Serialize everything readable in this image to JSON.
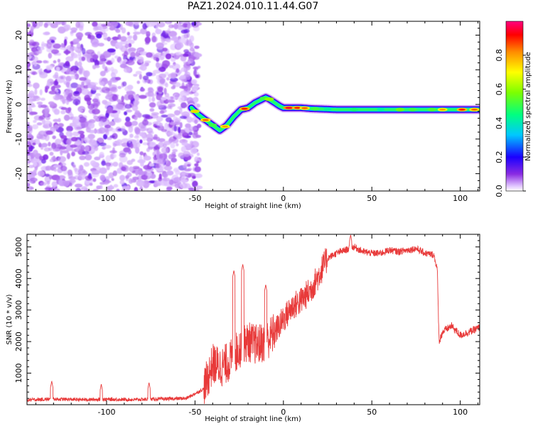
{
  "title": "PAZ1.2024.010.11.44.G07",
  "chart_data": [
    {
      "type": "heatmap",
      "title": "PAZ1.2024.010.11.44.G07",
      "xlabel": "Height of straight line (km)",
      "ylabel": "Frequency (Hz)",
      "xlim": [
        -145,
        111
      ],
      "ylim": [
        -25,
        24
      ],
      "xticks": [
        -100,
        -50,
        0,
        50,
        100
      ],
      "yticks": [
        -20,
        -10,
        0,
        10,
        20
      ],
      "noise_region": [
        -145,
        -50
      ],
      "ridge": {
        "x": [
          -52,
          -48,
          -44,
          -40,
          -36,
          -32,
          -28,
          -24,
          -20,
          -16,
          -12,
          -10,
          -8,
          -5,
          -2,
          0,
          5,
          10,
          15,
          20,
          25,
          30,
          35,
          40,
          50,
          60,
          70,
          80,
          90,
          100,
          111
        ],
        "frequency": [
          -1,
          -3,
          -4.5,
          -6,
          -7.5,
          -6,
          -3.5,
          -1.5,
          -1,
          0.5,
          1.5,
          2,
          1.5,
          0.5,
          -0.5,
          -1,
          -1,
          -1,
          -1.2,
          -1.3,
          -1.4,
          -1.5,
          -1.5,
          -1.5,
          -1.5,
          -1.5,
          -1.5,
          -1.5,
          -1.5,
          -1.5,
          -1.5
        ]
      },
      "colorbar": {
        "label": "Normalized spectral amplitude",
        "range": [
          0,
          1
        ],
        "ticks": [
          "0.0",
          "0.2",
          "0.4",
          "0.6",
          "0.8"
        ]
      }
    },
    {
      "type": "line",
      "xlabel": "Height of straight line (km)",
      "ylabel": "SNR (10 * v/v)",
      "xlim": [
        -145,
        111
      ],
      "ylim": [
        0,
        5400
      ],
      "xticks": [
        -100,
        -50,
        0,
        50,
        100
      ],
      "yticks": [
        1000,
        2000,
        3000,
        4000,
        5000
      ],
      "color": "#e83a3a",
      "series": [
        {
          "x": [
            -145,
            -130,
            -115,
            -100,
            -85,
            -70,
            -55,
            -45,
            -40,
            -35,
            -30,
            -25,
            -20,
            -15,
            -10,
            -5,
            0,
            5,
            10,
            15,
            20,
            25,
            30,
            35,
            40,
            45,
            50,
            55,
            60,
            65,
            70,
            75,
            80,
            85,
            87,
            88,
            90,
            95,
            100,
            105,
            111
          ],
          "y": [
            150,
            180,
            160,
            170,
            160,
            180,
            200,
            500,
            1300,
            1200,
            1400,
            1800,
            2000,
            1900,
            2000,
            2300,
            2700,
            3100,
            3300,
            3600,
            4100,
            4650,
            4800,
            4900,
            5000,
            4850,
            4800,
            4800,
            4900,
            4850,
            4900,
            4950,
            4800,
            4750,
            4300,
            2000,
            2300,
            2500,
            2200,
            2300,
            2450
          ]
        }
      ],
      "spikes": [
        {
          "x": -131,
          "y": 750
        },
        {
          "x": -103,
          "y": 650
        },
        {
          "x": -76,
          "y": 700
        },
        {
          "x": -28,
          "y": 4250
        },
        {
          "x": -23,
          "y": 4450
        },
        {
          "x": -10,
          "y": 3800
        },
        {
          "x": 38,
          "y": 5380
        }
      ]
    }
  ]
}
